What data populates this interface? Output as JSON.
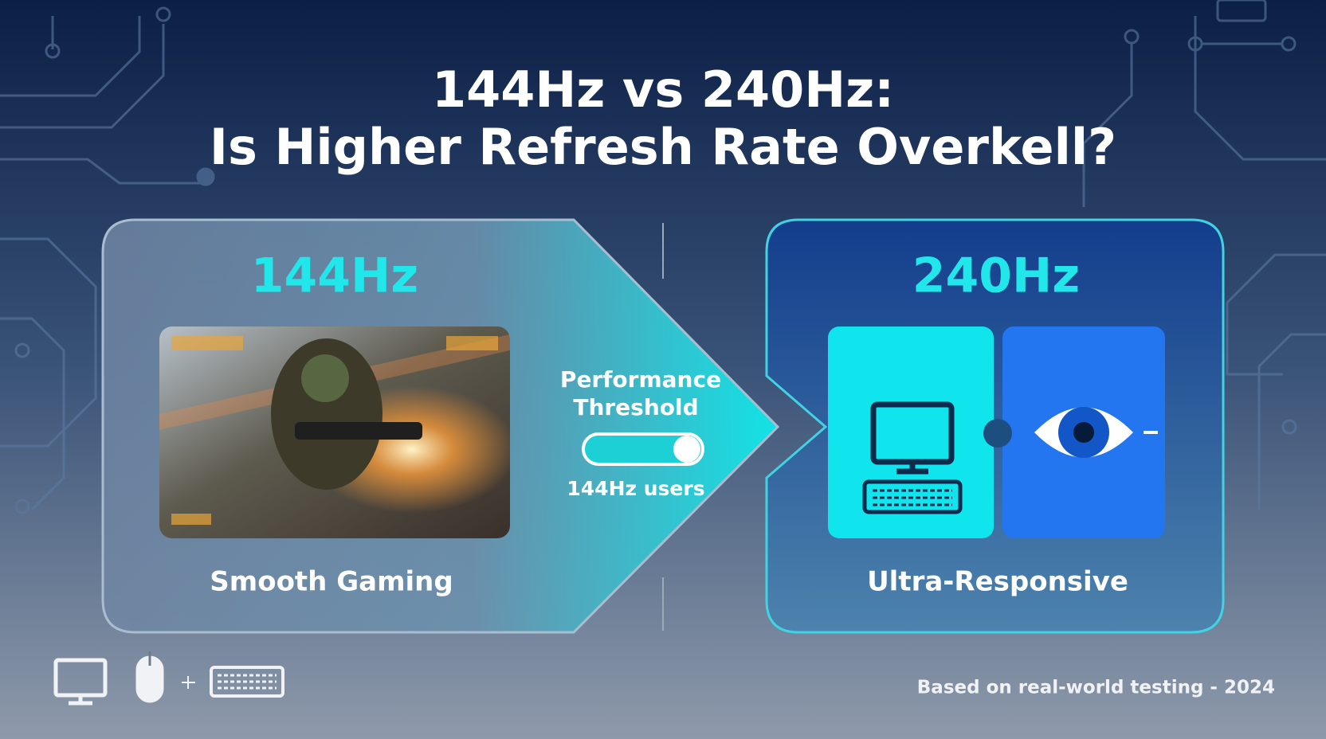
{
  "title": {
    "line1": "144Hz vs 240Hz:",
    "line2": "Is Higher Refresh Rate Overkell?"
  },
  "left_panel": {
    "label": "144Hz",
    "caption": "Smooth Gaming"
  },
  "threshold": {
    "title_line1": "Performance",
    "title_line2": "Threshold",
    "note": "144Hz users"
  },
  "right_panel": {
    "label": "240Hz",
    "caption": "Ultra-Responsive"
  },
  "footer": {
    "note": "Based on real-world testing - 2024"
  }
}
